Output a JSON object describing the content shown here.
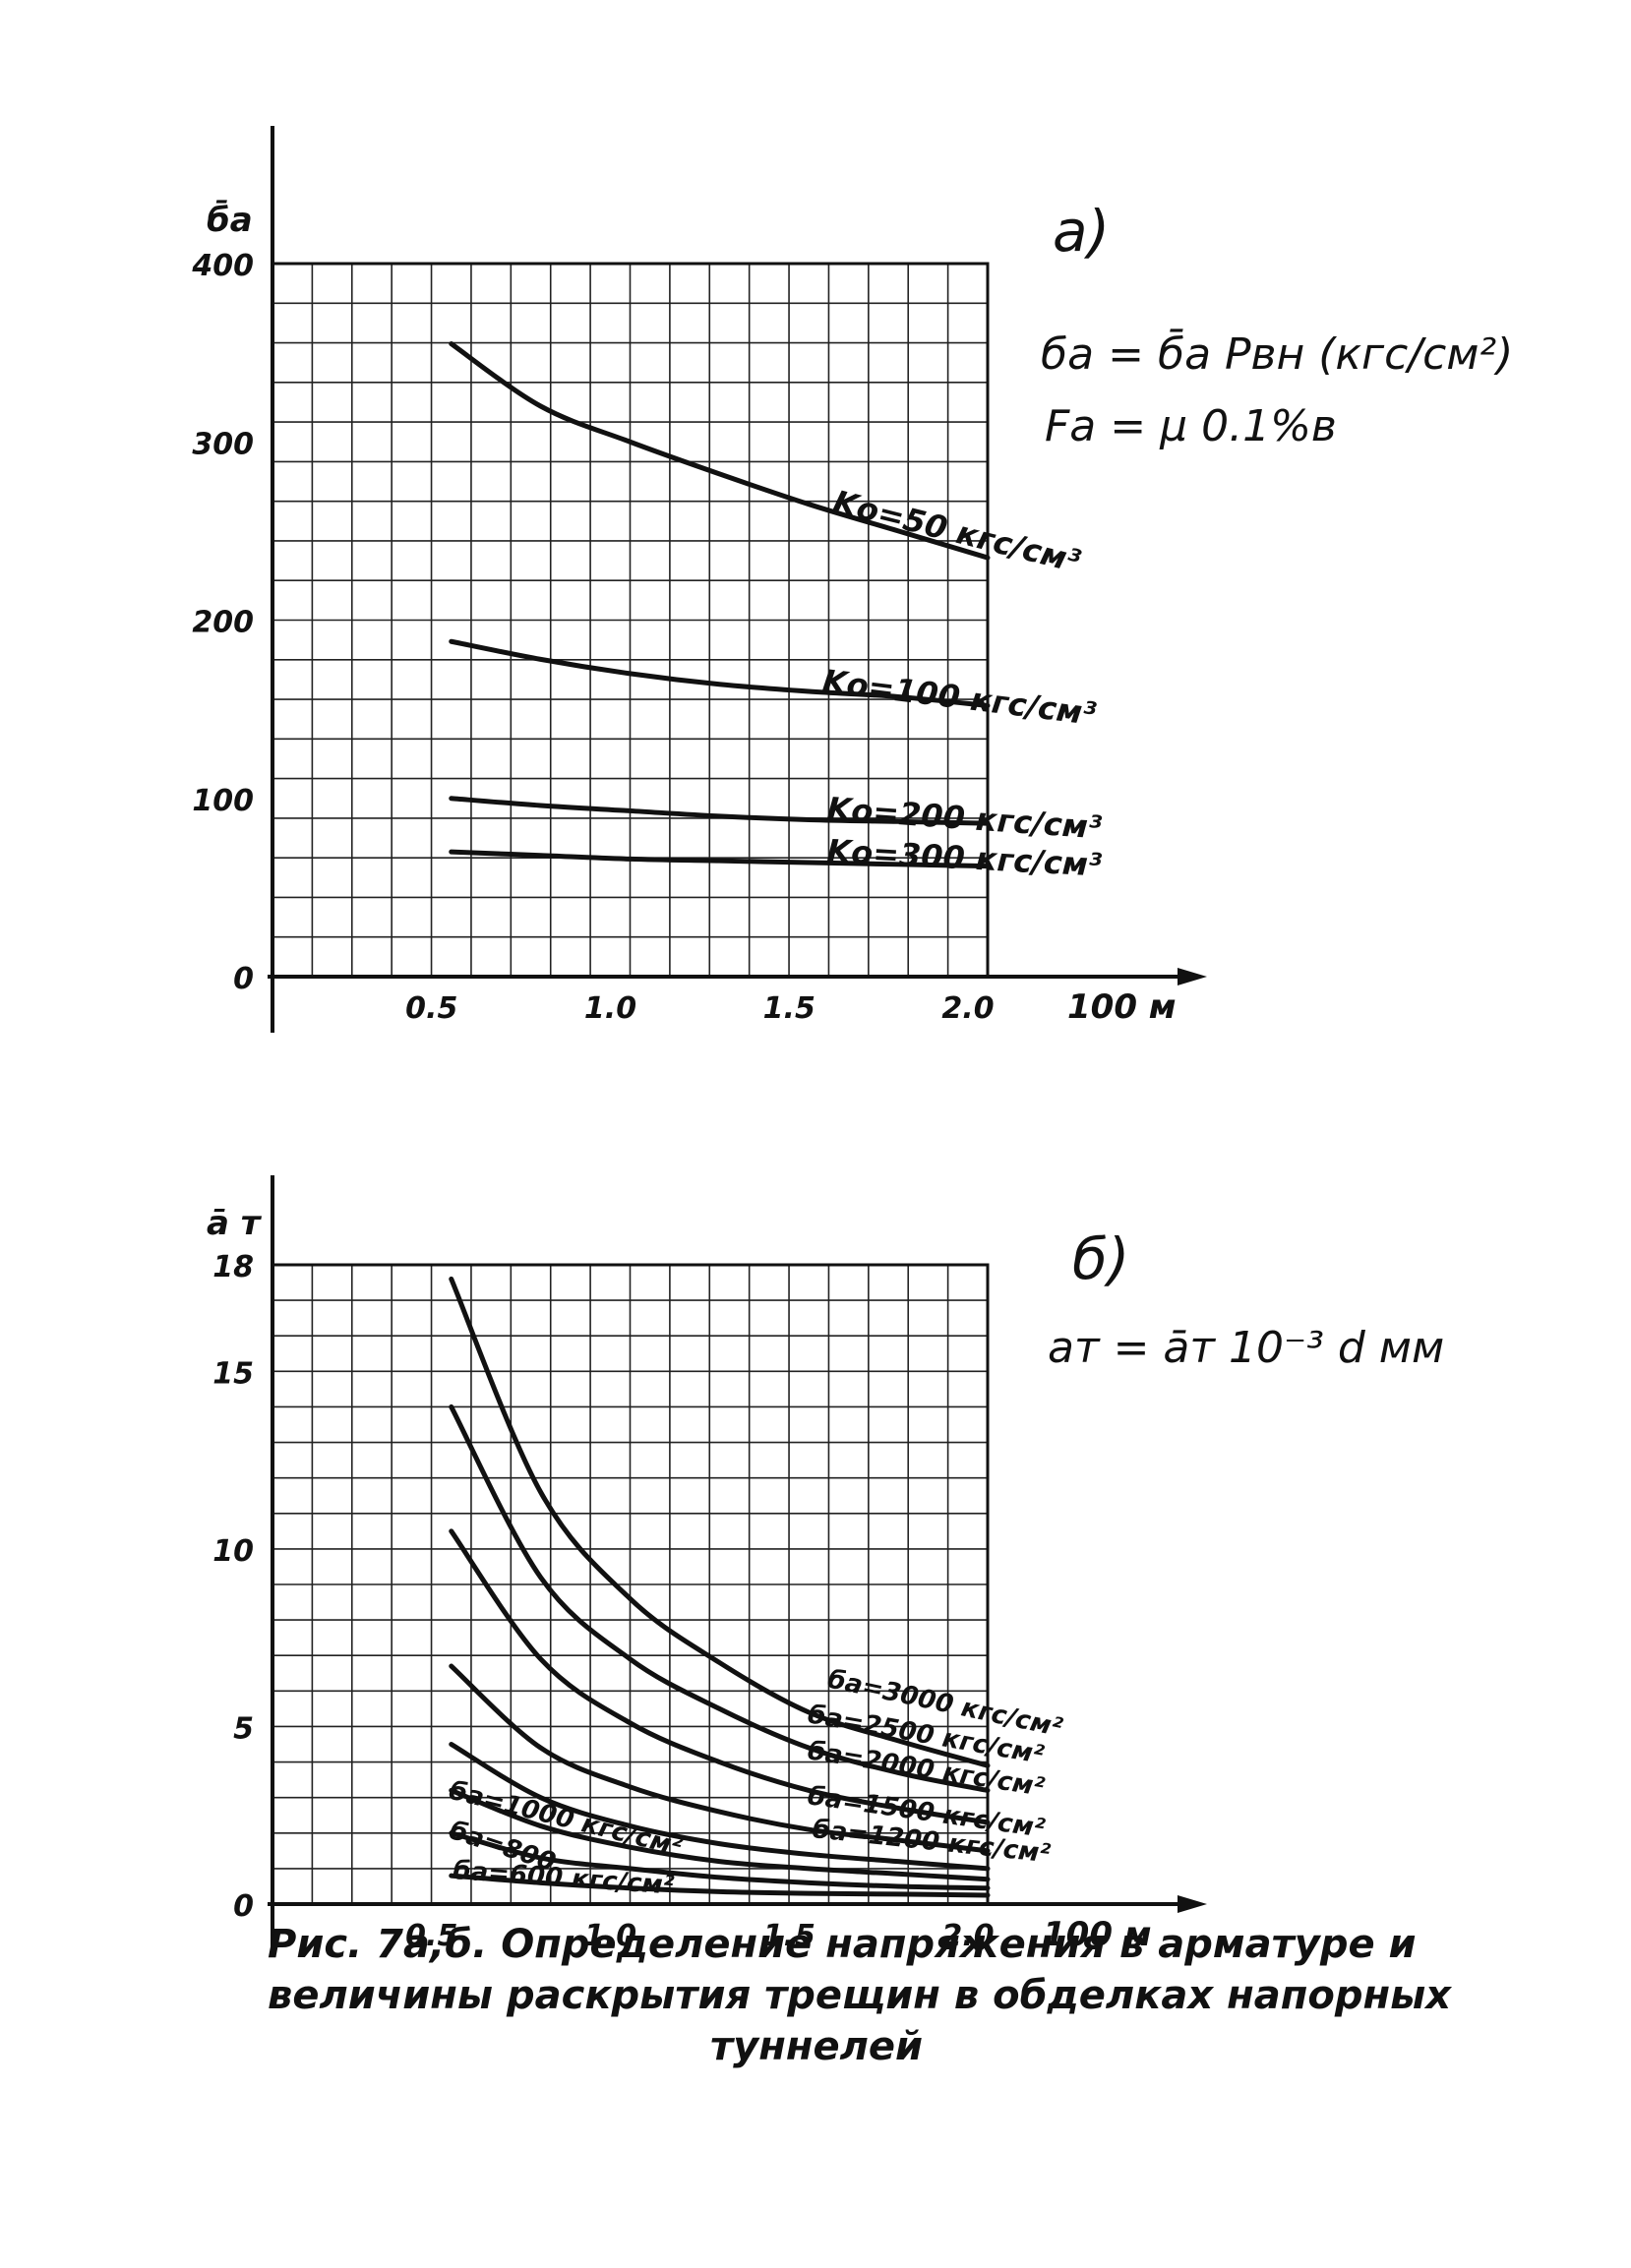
{
  "chart_data": [
    {
      "type": "line",
      "panel_label": "а)",
      "ylabel": "б̄а",
      "xlabel": "100 м",
      "formula_lines": [
        "ба = б̄а Рвн (кгс/см²)",
        "Fа = μ 0.1%в"
      ],
      "x_tick_labels": [
        "0.5",
        "1.0",
        "1.5",
        "2.0"
      ],
      "y_tick_labels": [
        "400",
        "300",
        "200",
        "100",
        "0"
      ],
      "xlim": [
        0,
        2.0
      ],
      "ylim": [
        0,
        400
      ],
      "grid": true,
      "x": [
        0.5,
        0.75,
        1.0,
        1.25,
        1.5,
        1.75,
        2.0
      ],
      "series": [
        {
          "name": "Kо=50 кгс/см³",
          "values": [
            355,
            320,
            300,
            282,
            265,
            250,
            235
          ]
        },
        {
          "name": "Kо=100 кгс/см³",
          "values": [
            188,
            178,
            170,
            164,
            160,
            157,
            152
          ]
        },
        {
          "name": "Kо=200 кгс/см³",
          "values": [
            100,
            96,
            93,
            90,
            88,
            87,
            86
          ]
        },
        {
          "name": "Kо=300 кгс/см³",
          "values": [
            70,
            68,
            66,
            65,
            64,
            63,
            62
          ]
        }
      ]
    },
    {
      "type": "line",
      "panel_label": "б)",
      "ylabel": "ā т",
      "xlabel": "100 м",
      "formula_lines": [
        "aт = āт 10⁻³ d мм"
      ],
      "x_tick_labels": [
        "0.5",
        "1.0",
        "1.5",
        "2.0"
      ],
      "y_tick_labels": [
        "18",
        "15",
        "10",
        "5",
        "0"
      ],
      "xlim": [
        0,
        2.0
      ],
      "ylim": [
        0,
        18
      ],
      "grid": true,
      "x": [
        0.5,
        0.75,
        1.0,
        1.25,
        1.5,
        1.75,
        2.0
      ],
      "series": [
        {
          "name": "ба=3000 кгс/см²",
          "values": [
            17.6,
            11.6,
            8.6,
            6.8,
            5.4,
            4.6,
            3.9
          ]
        },
        {
          "name": "ба=2500 кгс/см²",
          "values": [
            14.0,
            9.2,
            6.9,
            5.5,
            4.4,
            3.7,
            3.2
          ]
        },
        {
          "name": "ба=2000 кгс/см²",
          "values": [
            10.5,
            6.9,
            5.1,
            4.0,
            3.2,
            2.7,
            2.3
          ]
        },
        {
          "name": "ба=1500 кгс/см²",
          "values": [
            6.7,
            4.4,
            3.3,
            2.6,
            2.1,
            1.8,
            1.5
          ]
        },
        {
          "name": "ба=1200 кгс/см²",
          "values": [
            4.5,
            3.0,
            2.2,
            1.7,
            1.4,
            1.2,
            1.0
          ]
        },
        {
          "name": "ба=1000 кгс/см²",
          "values": [
            3.2,
            2.2,
            1.6,
            1.2,
            1.0,
            0.85,
            0.7
          ]
        },
        {
          "name": "ба=800",
          "values": [
            2.0,
            1.3,
            1.0,
            0.75,
            0.6,
            0.5,
            0.45
          ]
        },
        {
          "name": "ба=600 кгс/см²",
          "values": [
            0.8,
            0.6,
            0.45,
            0.35,
            0.3,
            0.28,
            0.25
          ]
        }
      ]
    }
  ],
  "caption_lines": [
    "Рис. 7а,б.  Определение напряжения в арматуре и",
    "величины раскрытия трещин в обделках напорных",
    "туннелей"
  ]
}
